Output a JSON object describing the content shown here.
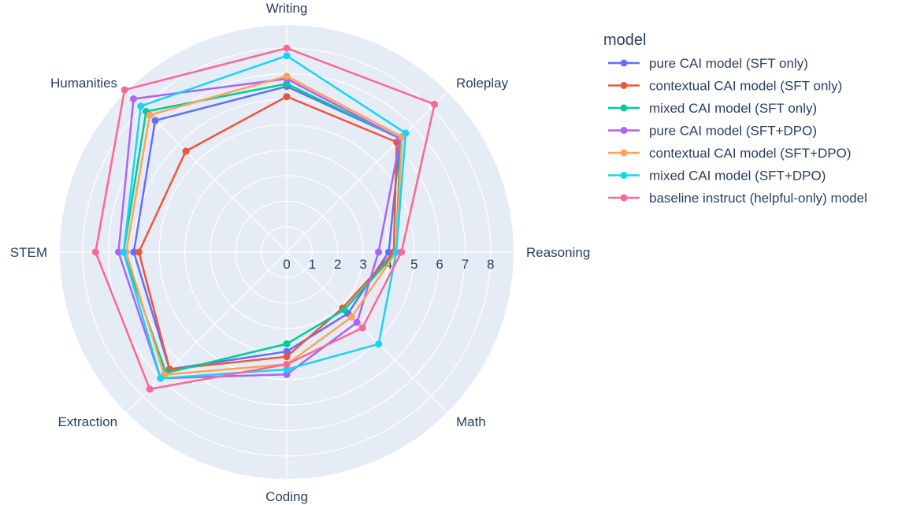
{
  "chart_data": {
    "type": "radar",
    "categories": [
      "Writing",
      "Roleplay",
      "Reasoning",
      "Math",
      "Coding",
      "Extraction",
      "STEM",
      "Humanities"
    ],
    "radial_ticks": [
      0,
      1,
      2,
      3,
      4,
      5,
      6,
      7,
      8
    ],
    "radial_range": [
      0,
      8.9
    ],
    "legend_title": "model",
    "legend_position": "top-right",
    "grid": true,
    "series": [
      {
        "name": "pure CAI model (SFT only)",
        "color": "#636efa",
        "values": [
          6.5,
          6.3,
          4.0,
          3.4,
          3.9,
          6.5,
          6.0,
          7.3
        ]
      },
      {
        "name": "contextual CAI model (SFT only)",
        "color": "#EF553B",
        "values": [
          6.1,
          6.1,
          4.2,
          3.1,
          4.1,
          6.5,
          5.8,
          5.6
        ]
      },
      {
        "name": "mixed CAI model (SFT only)",
        "color": "#00cc96",
        "values": [
          6.6,
          6.3,
          4.3,
          3.2,
          3.6,
          6.7,
          6.4,
          7.8
        ]
      },
      {
        "name": "pure CAI model (SFT+DPO)",
        "color": "#ab63fa",
        "values": [
          6.8,
          6.3,
          3.6,
          3.9,
          4.8,
          7.0,
          6.6,
          8.5
        ]
      },
      {
        "name": "contextual CAI model (SFT+DPO)",
        "color": "#FFA15A",
        "values": [
          6.9,
          6.4,
          4.3,
          3.6,
          4.4,
          6.8,
          6.3,
          7.6
        ]
      },
      {
        "name": "mixed CAI model (SFT+DPO)",
        "color": "#19d3f3",
        "values": [
          7.7,
          6.6,
          4.3,
          5.1,
          4.6,
          7.0,
          6.4,
          8.1
        ]
      },
      {
        "name": "baseline instruct (helpful-only) model",
        "color": "#FF6692",
        "values": [
          8.0,
          8.2,
          4.5,
          4.2,
          4.4,
          7.6,
          7.5,
          9.0
        ]
      }
    ]
  }
}
